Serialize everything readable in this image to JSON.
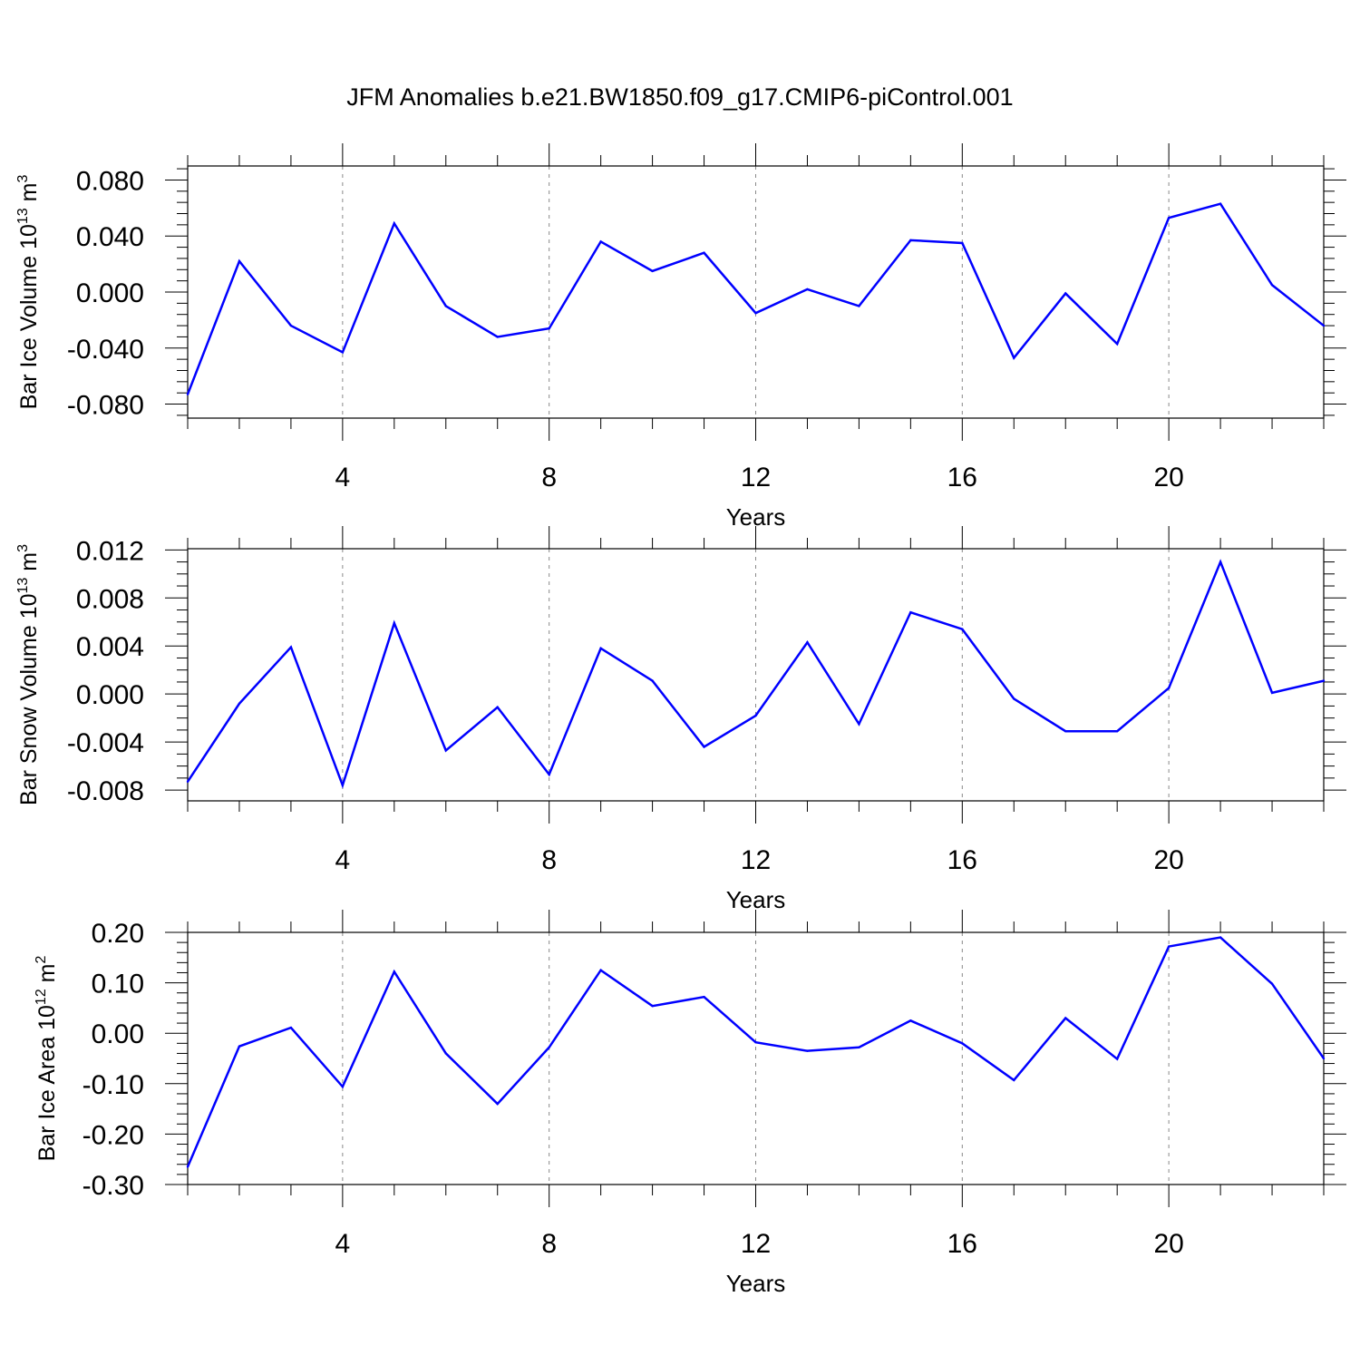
{
  "figure": {
    "title": "JFM Anomalies b.e21.BW1850.f09_g17.CMIP6-piControl.001",
    "line_color": "#0000ff",
    "grid_color": "#888888"
  },
  "chart_data": [
    {
      "type": "line",
      "name": "ice-volume",
      "ylabel_main": "Bar Ice Volume 10",
      "ylabel_sup": "13",
      "ylabel_unit": " m",
      "ylabel_unit_sup": "3",
      "xlabel": "Years",
      "xlim": [
        1,
        23
      ],
      "ylim": [
        -0.09,
        0.09
      ],
      "xticks": [
        4,
        8,
        12,
        16,
        20
      ],
      "xtick_labels": [
        "4",
        "8",
        "12",
        "16",
        "20"
      ],
      "yticks": [
        -0.08,
        -0.04,
        0.0,
        0.04,
        0.08
      ],
      "ytick_labels": [
        "-0.080",
        "-0.040",
        "0.000",
        "0.040",
        "0.080"
      ],
      "yminor_step": 0.008,
      "grid_x": [
        4,
        8,
        12,
        16,
        20
      ],
      "x": [
        1,
        2,
        3,
        4,
        5,
        6,
        7,
        8,
        9,
        10,
        11,
        12,
        13,
        14,
        15,
        16,
        17,
        18,
        19,
        20,
        21,
        22,
        23
      ],
      "values": [
        -0.073,
        0.022,
        -0.024,
        -0.043,
        0.049,
        -0.01,
        -0.032,
        -0.026,
        0.036,
        0.015,
        0.028,
        -0.015,
        0.002,
        -0.01,
        0.037,
        0.035,
        -0.047,
        -0.001,
        -0.037,
        0.053,
        0.063,
        0.005,
        -0.024
      ]
    },
    {
      "type": "line",
      "name": "snow-volume",
      "ylabel_main": "Bar Snow Volume 10",
      "ylabel_sup": "13",
      "ylabel_unit": " m",
      "ylabel_unit_sup": "3",
      "xlabel": "Years",
      "xlim": [
        1,
        23
      ],
      "ylim": [
        -0.0089,
        0.0121
      ],
      "xticks": [
        4,
        8,
        12,
        16,
        20
      ],
      "xtick_labels": [
        "4",
        "8",
        "12",
        "16",
        "20"
      ],
      "yticks": [
        -0.008,
        -0.004,
        0.0,
        0.004,
        0.008,
        0.012
      ],
      "ytick_labels": [
        "-0.008",
        "-0.004",
        "0.000",
        "0.004",
        "0.008",
        "0.012"
      ],
      "yminor_step": 0.001,
      "grid_x": [
        4,
        8,
        12,
        16,
        20
      ],
      "x": [
        1,
        2,
        3,
        4,
        5,
        6,
        7,
        8,
        9,
        10,
        11,
        12,
        13,
        14,
        15,
        16,
        17,
        18,
        19,
        20,
        21,
        22,
        23
      ],
      "values": [
        -0.0073,
        -0.0008,
        0.0039,
        -0.0076,
        0.0059,
        -0.0047,
        -0.0011,
        -0.0067,
        0.0038,
        0.0011,
        -0.0044,
        -0.0018,
        0.0043,
        -0.0025,
        0.0068,
        0.0054,
        -0.0004,
        -0.0031,
        -0.0031,
        0.0005,
        0.011,
        0.0001,
        0.0011
      ]
    },
    {
      "type": "line",
      "name": "ice-area",
      "ylabel_main": "Bar Ice Area 10",
      "ylabel_sup": "12",
      "ylabel_unit": " m",
      "ylabel_unit_sup": "2",
      "xlabel": "Years",
      "xlim": [
        1,
        23
      ],
      "ylim": [
        -0.3,
        0.2
      ],
      "xticks": [
        4,
        8,
        12,
        16,
        20
      ],
      "xtick_labels": [
        "4",
        "8",
        "12",
        "16",
        "20"
      ],
      "yticks": [
        -0.3,
        -0.2,
        -0.1,
        0.0,
        0.1,
        0.2
      ],
      "ytick_labels": [
        "-0.30",
        "-0.20",
        "-0.10",
        "0.00",
        "0.10",
        "0.20"
      ],
      "yminor_step": 0.02,
      "grid_x": [
        4,
        8,
        12,
        16,
        20
      ],
      "x": [
        1,
        2,
        3,
        4,
        5,
        6,
        7,
        8,
        9,
        10,
        11,
        12,
        13,
        14,
        15,
        16,
        17,
        18,
        19,
        20,
        21,
        22,
        23
      ],
      "values": [
        -0.265,
        -0.026,
        0.011,
        -0.106,
        0.122,
        -0.04,
        -0.14,
        -0.028,
        0.125,
        0.054,
        0.072,
        -0.018,
        -0.035,
        -0.028,
        0.025,
        -0.02,
        -0.093,
        0.03,
        -0.051,
        0.172,
        0.19,
        0.098,
        -0.05
      ]
    }
  ]
}
